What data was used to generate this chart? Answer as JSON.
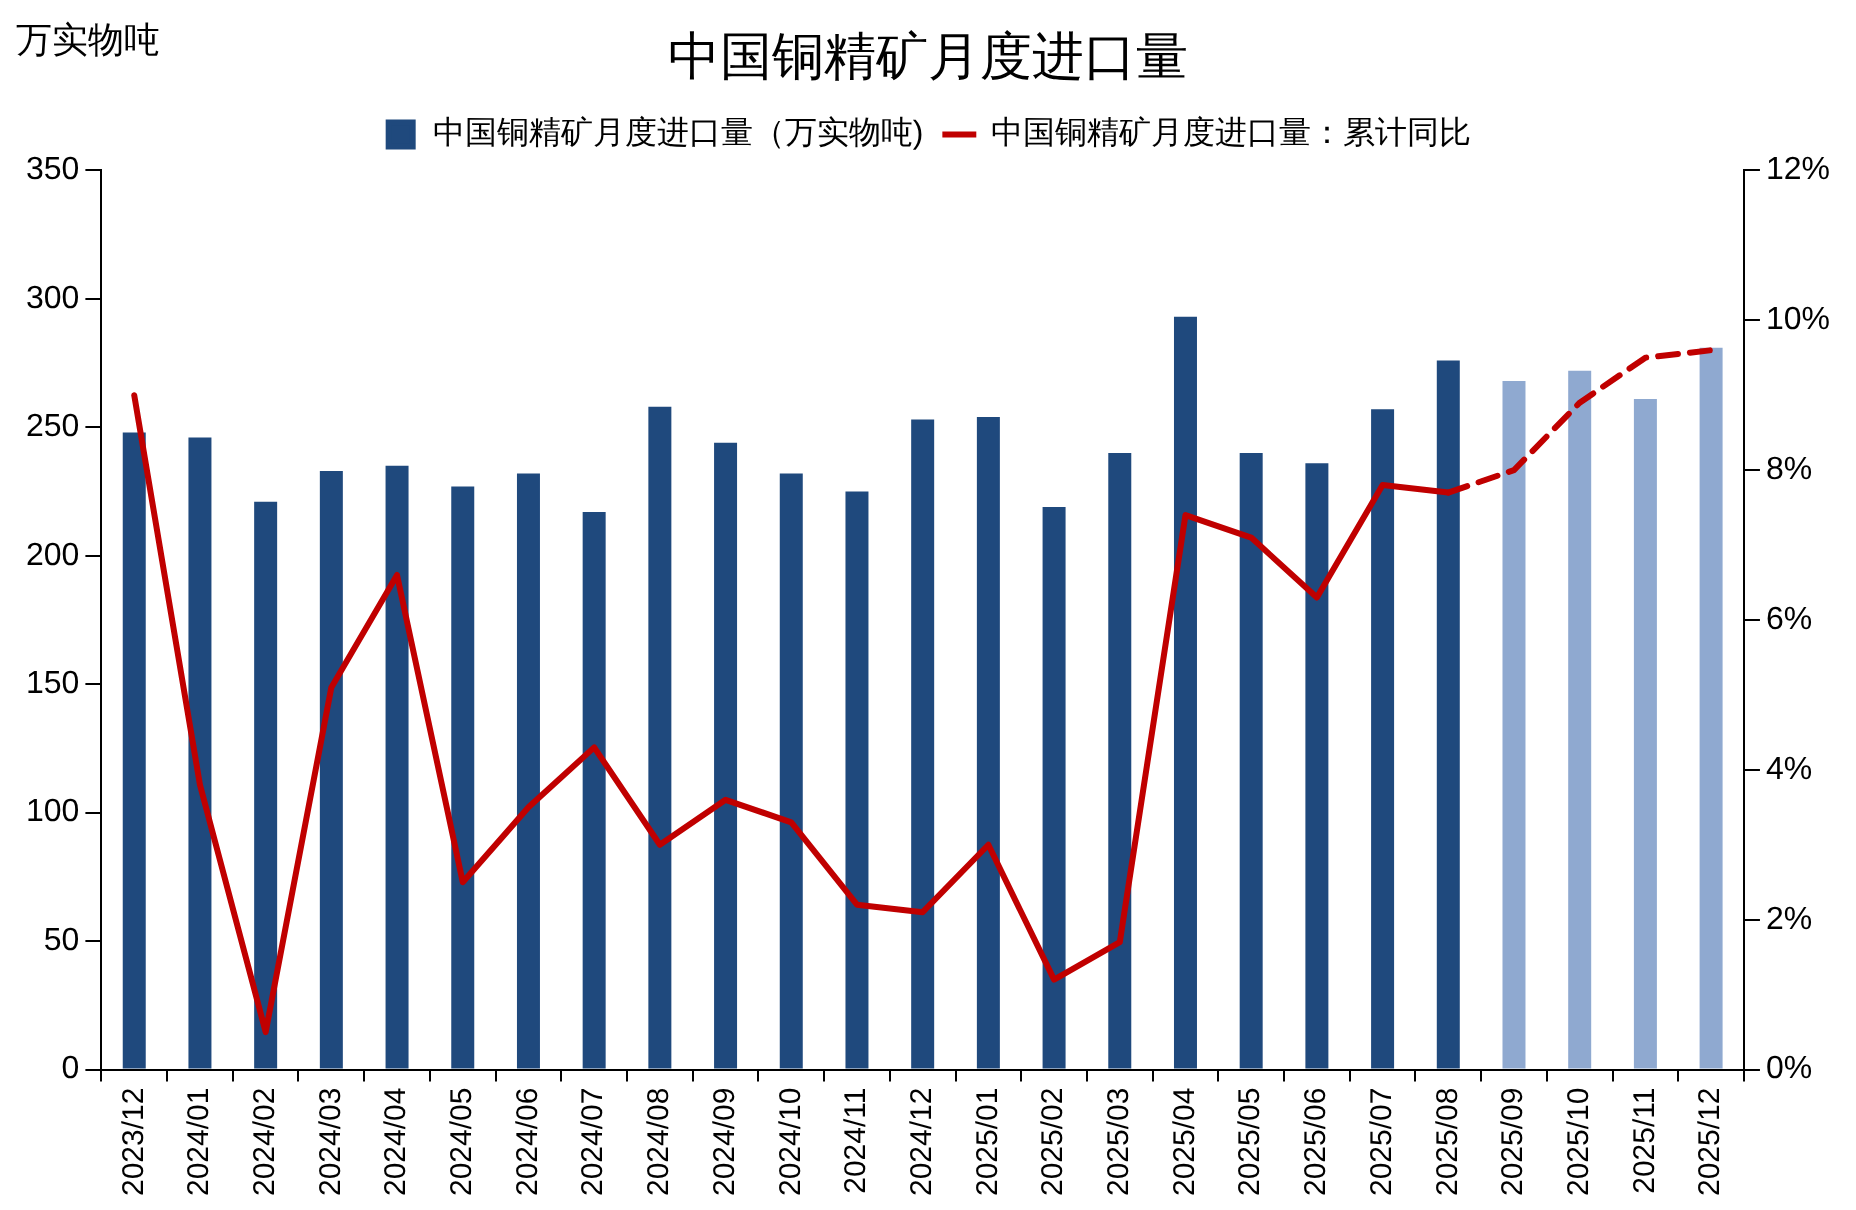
{
  "chart_data": {
    "type": "bar",
    "title": "中国铜精矿月度进口量",
    "ylabel": "万实物吨",
    "categories": [
      "2023/12",
      "2024/01",
      "2024/02",
      "2024/03",
      "2024/04",
      "2024/05",
      "2024/06",
      "2024/07",
      "2024/08",
      "2024/09",
      "2024/10",
      "2024/11",
      "2024/12",
      "2025/01",
      "2025/02",
      "2025/03",
      "2025/04",
      "2025/05",
      "2025/06",
      "2025/07",
      "2025/08",
      "2025/09",
      "2025/10",
      "2025/11",
      "2025/12"
    ],
    "series": [
      {
        "name": "中国铜精矿月度进口量（万实物吨)",
        "colors": [
          "#1f497d",
          "#1f497d",
          "#1f497d",
          "#1f497d",
          "#1f497d",
          "#1f497d",
          "#1f497d",
          "#1f497d",
          "#1f497d",
          "#1f497d",
          "#1f497d",
          "#1f497d",
          "#1f497d",
          "#1f497d",
          "#1f497d",
          "#1f497d",
          "#1f497d",
          "#1f497d",
          "#1f497d",
          "#1f497d",
          "#1f497d",
          "#8fa9d0",
          "#8fa9d0",
          "#8fa9d0",
          "#8fa9d0"
        ],
        "values": [
          248,
          246,
          221,
          233,
          235,
          227,
          232,
          217,
          258,
          244,
          232,
          225,
          253,
          254,
          219,
          240,
          293,
          240,
          236,
          257,
          276,
          268,
          272,
          261,
          281
        ]
      },
      {
        "type": "line",
        "name": "中国铜精矿月度进口量：累计同比",
        "color": "#c00000",
        "axis": "y2",
        "line_style": "solid",
        "values": [
          9.0,
          3.8,
          0.5,
          5.1,
          6.6,
          2.5,
          3.5,
          4.3,
          3.0,
          3.6,
          3.3,
          2.2,
          2.1,
          3.0,
          1.2,
          1.7,
          7.4,
          7.1,
          6.3,
          7.8,
          7.7,
          null,
          null,
          null,
          null
        ]
      },
      {
        "type": "line",
        "color": "#c00000",
        "axis": "y2",
        "line_style": "dashed",
        "values": [
          null,
          null,
          null,
          null,
          null,
          null,
          null,
          null,
          null,
          null,
          null,
          null,
          null,
          null,
          null,
          null,
          null,
          null,
          null,
          null,
          7.7,
          8.0,
          8.9,
          9.5,
          9.6
        ]
      }
    ],
    "ylim": [
      0,
      350
    ],
    "yticks": [
      0,
      50,
      100,
      150,
      200,
      250,
      300,
      350
    ],
    "y2lim": [
      0,
      12
    ],
    "y2ticks": [
      {
        "value": 0,
        "label": "0%"
      },
      {
        "value": 2,
        "label": "2%"
      },
      {
        "value": 4,
        "label": "4%"
      },
      {
        "value": 6,
        "label": "6%"
      },
      {
        "value": 8,
        "label": "8%"
      },
      {
        "value": 10,
        "label": "10%"
      },
      {
        "value": 12,
        "label": "12%"
      }
    ],
    "grid": false,
    "legend": "top",
    "marker": "none"
  }
}
